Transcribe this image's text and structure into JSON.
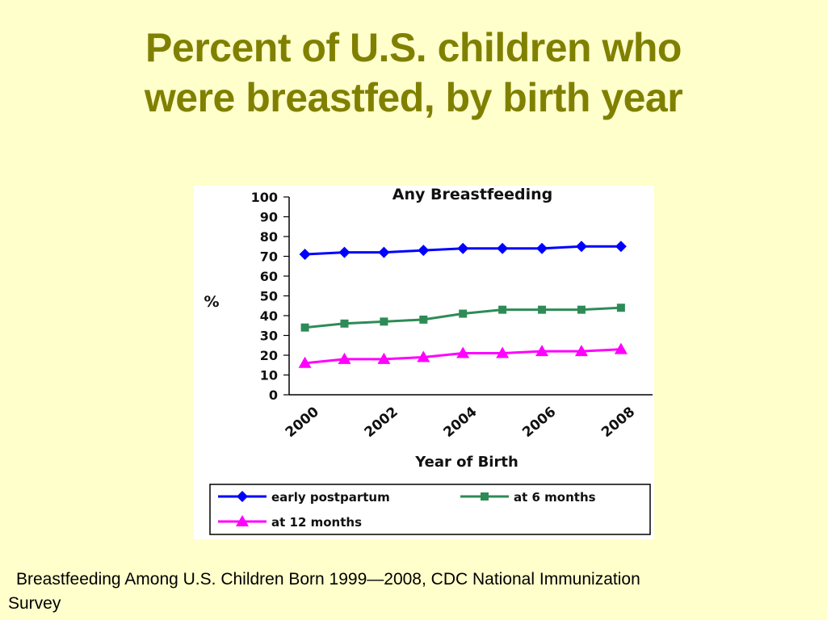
{
  "slide": {
    "title_line1": "Percent of U.S. children who",
    "title_line2": "were breastfed, by birth year",
    "caption_line1": "Breastfeeding Among U.S. Children Born 1999—2008, CDC National Immunization",
    "caption_line2": "Survey"
  },
  "chart_data": {
    "type": "line",
    "title": "Any Breastfeeding",
    "xlabel": "Year of Birth",
    "ylabel": "%",
    "ylim": [
      0,
      100
    ],
    "yticks": [
      0,
      10,
      20,
      30,
      40,
      50,
      60,
      70,
      80,
      90,
      100
    ],
    "x": [
      2000,
      2001,
      2002,
      2003,
      2004,
      2005,
      2006,
      2007,
      2008
    ],
    "xtick_labels": [
      "2000",
      "2002",
      "2004",
      "2006",
      "2008"
    ],
    "grid": false,
    "legend_position": "bottom",
    "series": [
      {
        "name": "early postpartum",
        "color": "#0000ff",
        "marker": "diamond",
        "values": [
          71,
          72,
          72,
          73,
          74,
          74,
          74,
          75,
          75
        ]
      },
      {
        "name": "at 6 months",
        "color": "#2e8b57",
        "marker": "square",
        "values": [
          34,
          36,
          37,
          38,
          41,
          43,
          43,
          43,
          44
        ]
      },
      {
        "name": "at 12 months",
        "color": "#ff00ff",
        "marker": "triangle",
        "values": [
          16,
          18,
          18,
          19,
          21,
          21,
          22,
          22,
          23
        ]
      }
    ]
  }
}
